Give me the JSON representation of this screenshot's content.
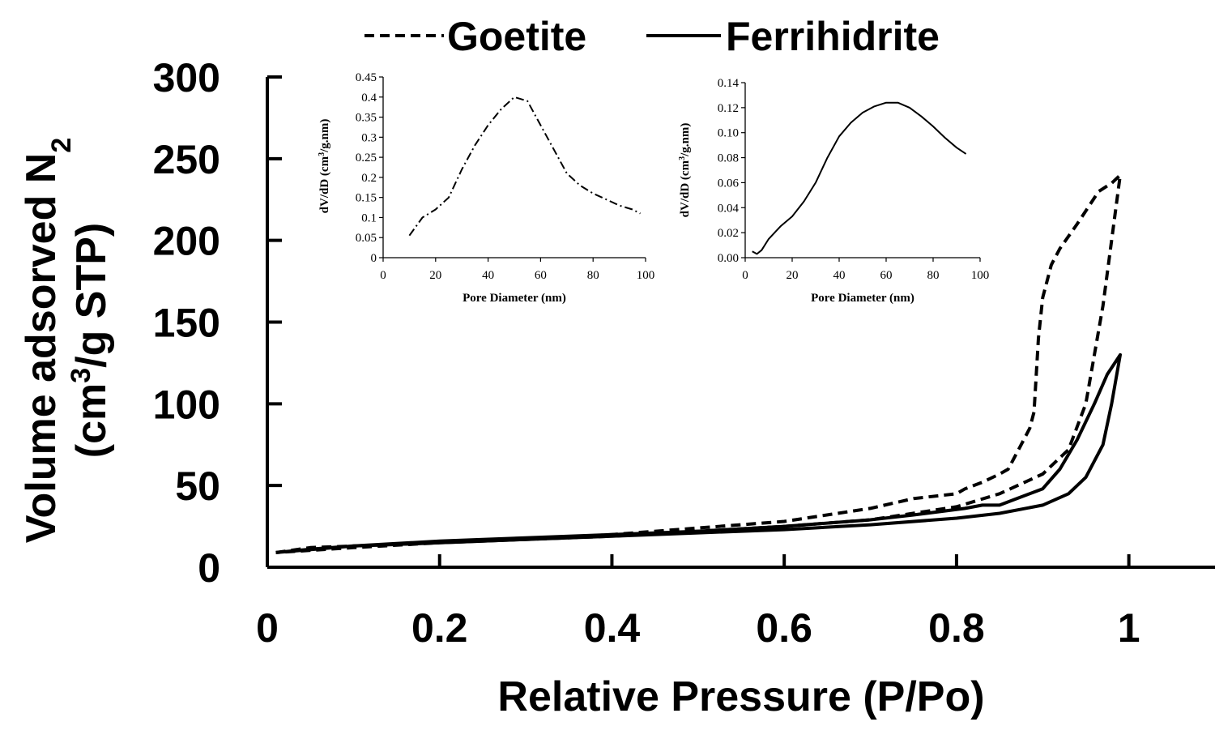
{
  "chart_data": [
    {
      "type": "line",
      "title": "",
      "xlabel": "Relative Pressure (P/Po)",
      "ylabel_main": "Volume adsorved N",
      "ylabel_sub": "2",
      "ylabel_line2_pre": "(cm",
      "ylabel_line2_sup": "3",
      "ylabel_line2_post": "/g STP)",
      "xlim": [
        0,
        1.1
      ],
      "ylim": [
        0,
        300
      ],
      "xticks": [
        0,
        0.2,
        0.4,
        0.6,
        0.8,
        1
      ],
      "xtick_labels": [
        "0",
        "0.2",
        "0.4",
        "0.6",
        "0.8",
        "1"
      ],
      "yticks": [
        0,
        50,
        100,
        150,
        200,
        250,
        300
      ],
      "ytick_labels": [
        "0",
        "50",
        "100",
        "150",
        "200",
        "250",
        "300"
      ],
      "legend": {
        "placement": "top-center",
        "entries": [
          "Goetite",
          "Ferrihidrite"
        ]
      },
      "series": [
        {
          "name": "Goetite",
          "style": "dashed",
          "adsorption": [
            [
              0.01,
              9
            ],
            [
              0.05,
              12
            ],
            [
              0.1,
              13
            ],
            [
              0.2,
              15
            ],
            [
              0.3,
              17
            ],
            [
              0.4,
              19
            ],
            [
              0.5,
              22
            ],
            [
              0.6,
              25
            ],
            [
              0.7,
              29
            ],
            [
              0.8,
              37
            ],
            [
              0.85,
              45
            ],
            [
              0.9,
              57
            ],
            [
              0.93,
              72
            ],
            [
              0.95,
              100
            ],
            [
              0.97,
              160
            ],
            [
              0.985,
              220
            ],
            [
              0.99,
              240
            ]
          ],
          "desorption": [
            [
              0.99,
              240
            ],
            [
              0.98,
              235
            ],
            [
              0.965,
              230
            ],
            [
              0.94,
              210
            ],
            [
              0.92,
              195
            ],
            [
              0.91,
              185
            ],
            [
              0.9,
              165
            ],
            [
              0.895,
              140
            ],
            [
              0.89,
              95
            ],
            [
              0.885,
              85
            ],
            [
              0.875,
              75
            ],
            [
              0.86,
              60
            ],
            [
              0.85,
              57
            ],
            [
              0.83,
              52
            ],
            [
              0.81,
              48
            ],
            [
              0.8,
              45
            ],
            [
              0.75,
              42
            ],
            [
              0.7,
              36
            ],
            [
              0.6,
              28
            ],
            [
              0.5,
              24
            ],
            [
              0.4,
              20
            ],
            [
              0.3,
              17
            ],
            [
              0.2,
              15
            ],
            [
              0.1,
              12
            ],
            [
              0.01,
              9
            ]
          ]
        },
        {
          "name": "Ferrihidrite",
          "style": "solid",
          "adsorption": [
            [
              0.01,
              9
            ],
            [
              0.05,
              11
            ],
            [
              0.1,
              13
            ],
            [
              0.2,
              15
            ],
            [
              0.3,
              17
            ],
            [
              0.4,
              19
            ],
            [
              0.5,
              21
            ],
            [
              0.6,
              23
            ],
            [
              0.7,
              26
            ],
            [
              0.8,
              30
            ],
            [
              0.85,
              33
            ],
            [
              0.9,
              38
            ],
            [
              0.93,
              45
            ],
            [
              0.95,
              55
            ],
            [
              0.97,
              75
            ],
            [
              0.98,
              100
            ],
            [
              0.99,
              130
            ]
          ],
          "desorption": [
            [
              0.99,
              130
            ],
            [
              0.985,
              126
            ],
            [
              0.975,
              118
            ],
            [
              0.96,
              100
            ],
            [
              0.94,
              78
            ],
            [
              0.92,
              60
            ],
            [
              0.9,
              48
            ],
            [
              0.87,
              42
            ],
            [
              0.85,
              38
            ],
            [
              0.83,
              38
            ],
            [
              0.81,
              36
            ],
            [
              0.75,
              32
            ],
            [
              0.7,
              29
            ],
            [
              0.6,
              25
            ],
            [
              0.5,
              22
            ],
            [
              0.4,
              20
            ],
            [
              0.3,
              18
            ],
            [
              0.2,
              16
            ],
            [
              0.1,
              13
            ],
            [
              0.01,
              9
            ]
          ]
        }
      ]
    },
    {
      "type": "line",
      "title": "",
      "xlabel": "Pore Diameter (nm)",
      "ylabel_pre": "dV/dD  (cm",
      "ylabel_sup": "3",
      "ylabel_post": "/g.nm)",
      "xlim": [
        0,
        100
      ],
      "ylim": [
        0,
        0.45
      ],
      "xticks": [
        0,
        20,
        40,
        60,
        80,
        100
      ],
      "xtick_labels": [
        "0",
        "20",
        "40",
        "60",
        "80",
        "100"
      ],
      "yticks": [
        0,
        0.05,
        0.1,
        0.15,
        0.2,
        0.25,
        0.3,
        0.35,
        0.4,
        0.45
      ],
      "ytick_labels": [
        "0",
        "0.05",
        "0.1",
        "0.15",
        "0.2",
        "0.25",
        "0.3",
        "0.35",
        "0.4",
        "0.45"
      ],
      "series": [
        {
          "name": "Goetite",
          "style": "dashdot",
          "points": [
            [
              10,
              0.055
            ],
            [
              15,
              0.1
            ],
            [
              20,
              0.12
            ],
            [
              25,
              0.15
            ],
            [
              30,
              0.22
            ],
            [
              35,
              0.28
            ],
            [
              40,
              0.33
            ],
            [
              45,
              0.37
            ],
            [
              50,
              0.4
            ],
            [
              55,
              0.39
            ],
            [
              60,
              0.33
            ],
            [
              65,
              0.27
            ],
            [
              70,
              0.21
            ],
            [
              75,
              0.18
            ],
            [
              80,
              0.16
            ],
            [
              85,
              0.145
            ],
            [
              90,
              0.13
            ],
            [
              95,
              0.12
            ],
            [
              98,
              0.11
            ]
          ]
        }
      ]
    },
    {
      "type": "line",
      "title": "",
      "xlabel": "Pore Diameter (nm)",
      "ylabel_pre": "dV/dD  (cm",
      "ylabel_sup": "3",
      "ylabel_post": "/g.nm)",
      "xlim": [
        0,
        100
      ],
      "ylim": [
        0,
        0.14
      ],
      "xticks": [
        0,
        20,
        40,
        60,
        80,
        100
      ],
      "xtick_labels": [
        "0",
        "20",
        "40",
        "60",
        "80",
        "100"
      ],
      "yticks": [
        0,
        0.02,
        0.04,
        0.06,
        0.08,
        0.1,
        0.12,
        0.14
      ],
      "ytick_labels": [
        "0.00",
        "0.02",
        "0.04",
        "0.06",
        "0.08",
        "0.10",
        "0.12",
        "0.14"
      ],
      "series": [
        {
          "name": "Ferrihidrite",
          "style": "solid",
          "points": [
            [
              3,
              0.005
            ],
            [
              5,
              0.003
            ],
            [
              7,
              0.006
            ],
            [
              10,
              0.015
            ],
            [
              15,
              0.025
            ],
            [
              20,
              0.033
            ],
            [
              25,
              0.045
            ],
            [
              30,
              0.06
            ],
            [
              35,
              0.08
            ],
            [
              40,
              0.097
            ],
            [
              45,
              0.108
            ],
            [
              50,
              0.116
            ],
            [
              55,
              0.121
            ],
            [
              60,
              0.124
            ],
            [
              65,
              0.124
            ],
            [
              70,
              0.12
            ],
            [
              75,
              0.113
            ],
            [
              80,
              0.105
            ],
            [
              85,
              0.096
            ],
            [
              90,
              0.088
            ],
            [
              94,
              0.083
            ]
          ]
        }
      ]
    }
  ]
}
